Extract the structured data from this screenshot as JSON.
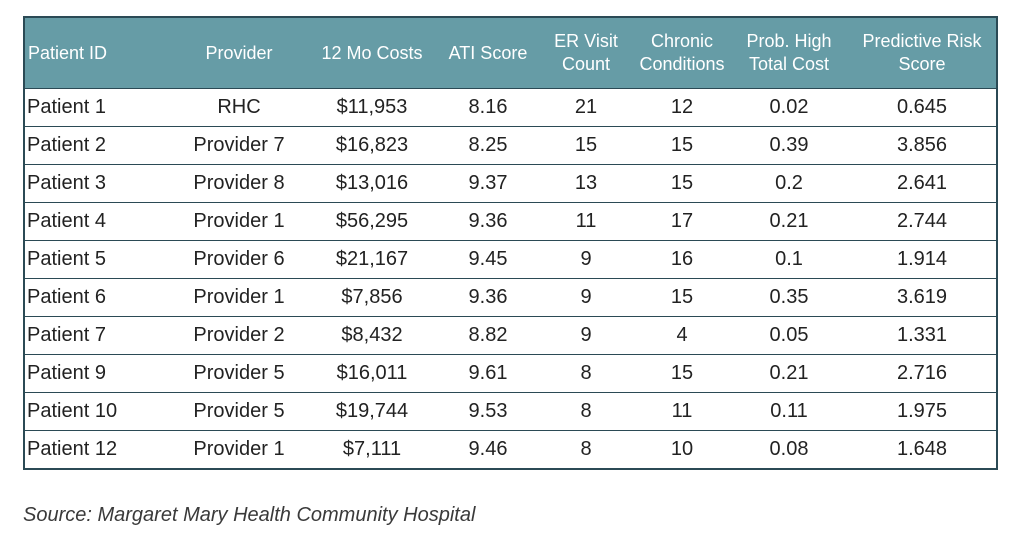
{
  "table": {
    "columns": [
      "Patient ID",
      "Provider",
      "12 Mo Costs",
      "ATI Score",
      "ER Visit\nCount",
      "Chronic\nConditions",
      "Prob. High\nTotal Cost",
      "Predictive Risk\nScore"
    ],
    "rows": [
      [
        "Patient 1",
        "RHC",
        "$11,953",
        "8.16",
        "21",
        "12",
        "0.02",
        "0.645"
      ],
      [
        "Patient 2",
        "Provider 7",
        "$16,823",
        "8.25",
        "15",
        "15",
        "0.39",
        "3.856"
      ],
      [
        "Patient 3",
        "Provider 8",
        "$13,016",
        "9.37",
        "13",
        "15",
        "0.2",
        "2.641"
      ],
      [
        "Patient 4",
        "Provider 1",
        "$56,295",
        "9.36",
        "11",
        "17",
        "0.21",
        "2.744"
      ],
      [
        "Patient 5",
        "Provider 6",
        "$21,167",
        "9.45",
        "9",
        "16",
        "0.1",
        "1.914"
      ],
      [
        "Patient 6",
        "Provider 1",
        "$7,856",
        "9.36",
        "9",
        "15",
        "0.35",
        "3.619"
      ],
      [
        "Patient 7",
        "Provider 2",
        "$8,432",
        "8.82",
        "9",
        "4",
        "0.05",
        "1.331"
      ],
      [
        "Patient 9",
        "Provider 5",
        "$16,011",
        "9.61",
        "8",
        "15",
        "0.21",
        "2.716"
      ],
      [
        "Patient 10",
        "Provider 5",
        "$19,744",
        "9.53",
        "8",
        "11",
        "0.11",
        "1.975"
      ],
      [
        "Patient 12",
        "Provider 1",
        "$7,111",
        "9.46",
        "8",
        "10",
        "0.08",
        "1.648"
      ]
    ]
  },
  "source": "Source: Margaret Mary Health Community Hospital",
  "colors": {
    "header_background": "#669ca6",
    "header_text": "#ffffff",
    "border": "#2b4a55"
  }
}
